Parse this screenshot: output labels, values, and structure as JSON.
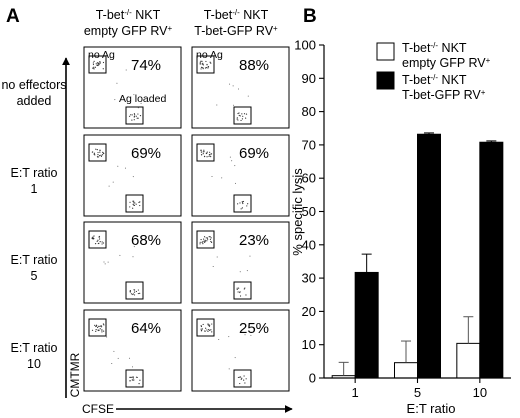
{
  "panel_a": {
    "letter": "A",
    "columns": [
      {
        "line1": "T-bet",
        "sup": "-/-",
        "line1_tail": " NKT",
        "line2": "empty GFP RV",
        "line2_sup": "+"
      },
      {
        "line1": "T-bet",
        "sup": "-/-",
        "line1_tail": " NKT",
        "line2": "T-bet-GFP RV",
        "line2_sup": "+"
      }
    ],
    "rows": [
      {
        "label_lines": [
          "no effectors",
          "added"
        ],
        "values": [
          "74%",
          "88%"
        ]
      },
      {
        "label_lines": [
          "E:T ratio",
          "1"
        ],
        "values": [
          "69%",
          "69%"
        ]
      },
      {
        "label_lines": [
          "E:T ratio",
          "5"
        ],
        "values": [
          "68%",
          "23%"
        ]
      },
      {
        "label_lines": [
          "E:T ratio",
          "10"
        ],
        "values": [
          "64%",
          "25%"
        ]
      }
    ],
    "gate_labels": {
      "no_ag": "no Ag",
      "ag_loaded": "Ag loaded"
    },
    "y_axis_label": "CMTMR",
    "x_axis_label": "CFSE"
  },
  "chart_data": {
    "type": "bar",
    "panel_letter": "B",
    "categories": [
      "1",
      "5",
      "10"
    ],
    "xlabel": "E:T ratio",
    "ylabel": "% specific lysis",
    "ylim": [
      0,
      100
    ],
    "yticks": [
      0,
      10,
      20,
      30,
      40,
      50,
      60,
      70,
      80,
      90,
      100
    ],
    "series": [
      {
        "legend_line1": "T-bet",
        "legend_sup": "-/-",
        "legend_line1_tail": " NKT",
        "legend_line2": "empty GFP RV",
        "legend_line2_sup": "+",
        "fill": "#ffffff",
        "values": [
          0.7,
          4.6,
          10.4
        ],
        "errors": [
          4.0,
          6.5,
          8.0
        ]
      },
      {
        "legend_line1": "T-bet",
        "legend_sup": "-/-",
        "legend_line1_tail": " NKT",
        "legend_line2": "T-bet-GFP RV",
        "legend_line2_sup": "+",
        "fill": "#000000",
        "values": [
          31.7,
          73.2,
          70.8
        ],
        "errors": [
          5.5,
          0.4,
          0.4
        ]
      }
    ],
    "legend_position": "top-right"
  }
}
